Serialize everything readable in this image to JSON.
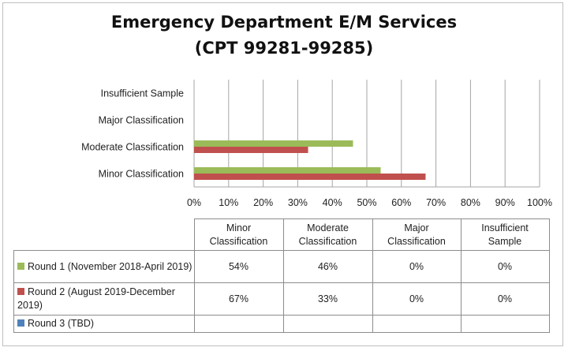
{
  "chart_data": {
    "type": "bar",
    "orientation": "horizontal",
    "title": [
      "Emergency Department E/M Services",
      "(CPT 99281-99285)"
    ],
    "categories": [
      "Minor Classification",
      "Moderate Classification",
      "Major Classification",
      "Insufficient Sample"
    ],
    "category_header_lines": [
      [
        "Minor",
        "Classification"
      ],
      [
        "Moderate",
        "Classification"
      ],
      [
        "Major",
        "Classification"
      ],
      [
        "Insufficient",
        "Sample"
      ]
    ],
    "xlim": [
      0,
      100
    ],
    "xticks": [
      "0%",
      "10%",
      "20%",
      "30%",
      "40%",
      "50%",
      "60%",
      "70%",
      "80%",
      "90%",
      "100%"
    ],
    "grid": "vertical",
    "legend": "data-table",
    "series": [
      {
        "name": "Round 1 (November 2018-April 2019)",
        "color": "#9bbb59",
        "values": [
          54,
          46,
          0,
          0
        ],
        "labels": [
          "54%",
          "46%",
          "0%",
          "0%"
        ]
      },
      {
        "name": "Round 2 (August 2019-December 2019)",
        "color": "#c0504d",
        "values": [
          67,
          33,
          0,
          0
        ],
        "labels": [
          "67%",
          "33%",
          "0%",
          "0%"
        ]
      },
      {
        "name": "Round 3 (TBD)",
        "color": "#4f81bd",
        "values": [
          null,
          null,
          null,
          null
        ],
        "labels": [
          "",
          "",
          "",
          ""
        ]
      }
    ]
  }
}
